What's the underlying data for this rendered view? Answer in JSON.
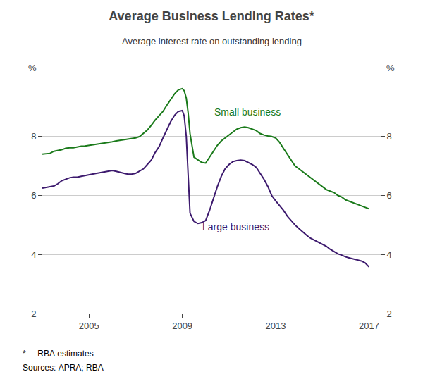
{
  "chart_data": {
    "type": "line",
    "title": "Average Business Lending Rates*",
    "subtitle": "Average interest rate on outstanding lending",
    "ylabel": "%",
    "y2label": "%",
    "footnotes": [
      "*     RBA estimates",
      "Sources: APRA; RBA"
    ],
    "xlim": [
      2003.0,
      2017.5
    ],
    "xticks": [
      2005,
      2009,
      2013,
      2017
    ],
    "ylim": [
      2,
      10
    ],
    "yticks": [
      2,
      4,
      6,
      8
    ],
    "y2lim": [
      2,
      10
    ],
    "y2ticks": [
      2,
      4,
      6,
      8
    ],
    "grid": "y",
    "x": [
      2003.0,
      2003.17,
      2003.33,
      2003.5,
      2003.67,
      2003.83,
      2004.0,
      2004.17,
      2004.33,
      2004.5,
      2004.67,
      2004.83,
      2005.0,
      2005.17,
      2005.33,
      2005.5,
      2005.67,
      2005.83,
      2006.0,
      2006.17,
      2006.33,
      2006.5,
      2006.67,
      2006.83,
      2007.0,
      2007.17,
      2007.33,
      2007.5,
      2007.67,
      2007.83,
      2008.0,
      2008.17,
      2008.33,
      2008.5,
      2008.67,
      2008.83,
      2009.0,
      2009.08,
      2009.17,
      2009.25,
      2009.33,
      2009.5,
      2009.67,
      2009.83,
      2010.0,
      2010.17,
      2010.33,
      2010.5,
      2010.67,
      2010.83,
      2011.0,
      2011.17,
      2011.33,
      2011.5,
      2011.67,
      2011.83,
      2012.0,
      2012.17,
      2012.33,
      2012.5,
      2012.67,
      2012.83,
      2013.0,
      2013.17,
      2013.33,
      2013.5,
      2013.67,
      2013.83,
      2014.0,
      2014.17,
      2014.33,
      2014.5,
      2014.67,
      2014.83,
      2015.0,
      2015.17,
      2015.33,
      2015.5,
      2015.67,
      2015.83,
      2016.0,
      2016.17,
      2016.33,
      2016.5,
      2016.67,
      2016.83,
      2017.0
    ],
    "series": [
      {
        "name": "Small business",
        "color": "#1a7a1a",
        "values": [
          7.4,
          7.42,
          7.43,
          7.5,
          7.52,
          7.55,
          7.6,
          7.62,
          7.62,
          7.65,
          7.67,
          7.68,
          7.7,
          7.72,
          7.73,
          7.75,
          7.78,
          7.8,
          7.82,
          7.85,
          7.87,
          7.88,
          7.9,
          7.92,
          7.95,
          8.0,
          8.1,
          8.22,
          8.38,
          8.55,
          8.7,
          8.85,
          9.05,
          9.25,
          9.45,
          9.58,
          9.62,
          9.55,
          9.3,
          8.8,
          8.1,
          7.3,
          7.2,
          7.12,
          7.1,
          7.3,
          7.5,
          7.7,
          7.85,
          7.95,
          8.05,
          8.15,
          8.25,
          8.3,
          8.32,
          8.3,
          8.25,
          8.2,
          8.1,
          8.05,
          8.02,
          8.0,
          7.95,
          7.8,
          7.6,
          7.4,
          7.2,
          7.0,
          6.9,
          6.8,
          6.7,
          6.6,
          6.5,
          6.4,
          6.3,
          6.2,
          6.15,
          6.1,
          6.0,
          5.95,
          5.85,
          5.8,
          5.75,
          5.7,
          5.65,
          5.6,
          5.55
        ]
      },
      {
        "name": "Large business",
        "color": "#3d1a6e",
        "values": [
          6.25,
          6.28,
          6.3,
          6.32,
          6.4,
          6.5,
          6.55,
          6.6,
          6.62,
          6.62,
          6.65,
          6.68,
          6.7,
          6.73,
          6.75,
          6.78,
          6.8,
          6.82,
          6.85,
          6.82,
          6.78,
          6.75,
          6.72,
          6.72,
          6.75,
          6.82,
          6.9,
          7.05,
          7.2,
          7.45,
          7.65,
          7.95,
          8.2,
          8.5,
          8.72,
          8.85,
          8.88,
          8.7,
          8.0,
          6.5,
          5.4,
          5.12,
          5.05,
          5.08,
          5.15,
          5.5,
          5.9,
          6.3,
          6.65,
          6.9,
          7.05,
          7.15,
          7.18,
          7.2,
          7.18,
          7.12,
          7.05,
          6.95,
          6.75,
          6.55,
          6.3,
          6.0,
          5.82,
          5.65,
          5.5,
          5.3,
          5.15,
          5.0,
          4.88,
          4.75,
          4.65,
          4.55,
          4.48,
          4.42,
          4.35,
          4.28,
          4.18,
          4.1,
          4.02,
          3.98,
          3.92,
          3.88,
          3.85,
          3.82,
          3.78,
          3.72,
          3.58
        ]
      }
    ],
    "annotations": [
      {
        "text": "Small business",
        "x": 2010.3,
        "y": 8.6,
        "color": "#1a7a1a"
      },
      {
        "text": "Large business",
        "x": 2009.8,
        "y": 4.7,
        "color": "#3d1a6e"
      }
    ]
  }
}
